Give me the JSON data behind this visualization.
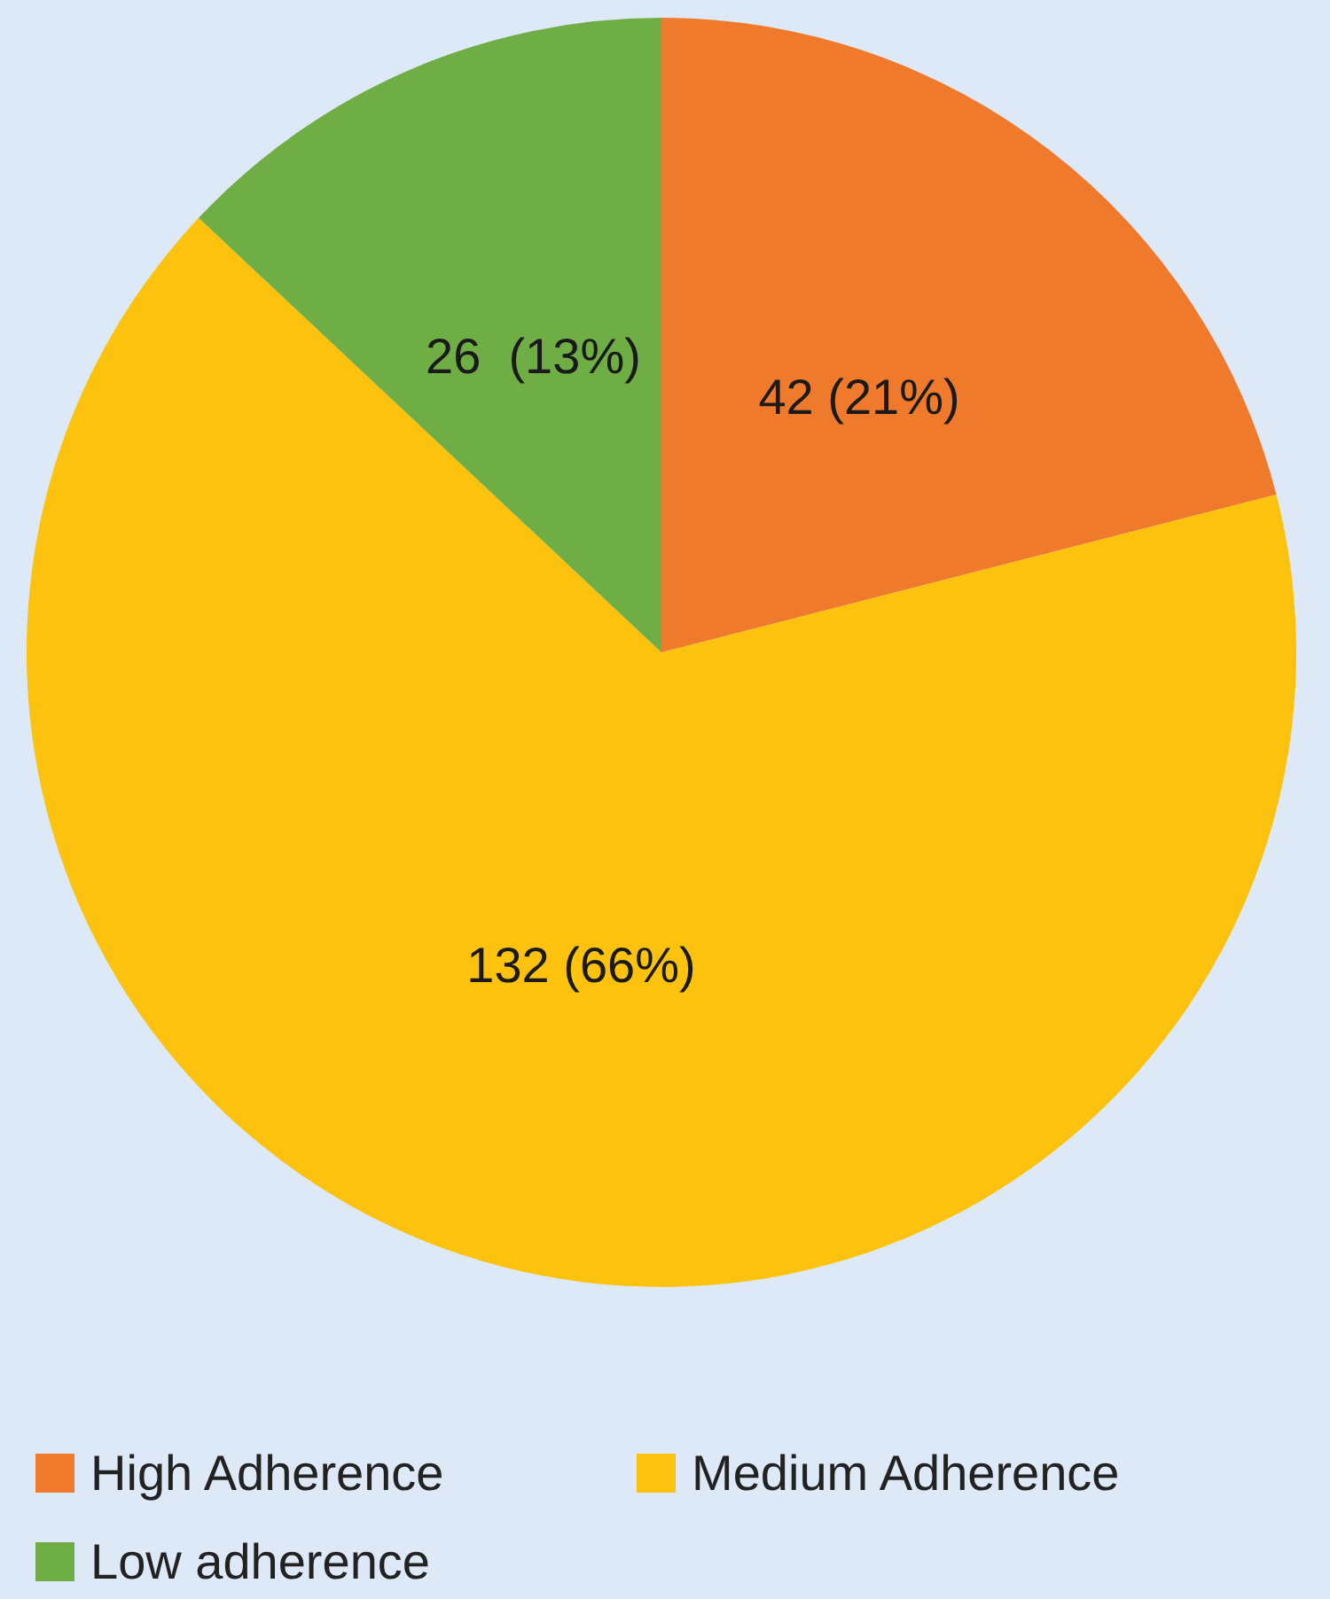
{
  "chart_data": {
    "type": "pie",
    "categories": [
      "High Adherence",
      "Medium Adherence",
      "Low adherence"
    ],
    "values": [
      42,
      132,
      26
    ],
    "colors": [
      "#f07a2c",
      "#fcc20e",
      "#6fae45"
    ],
    "value_labels": [
      "42 (21%)",
      "132 (66%)",
      "26  (13%)"
    ],
    "legend": "bottom"
  }
}
